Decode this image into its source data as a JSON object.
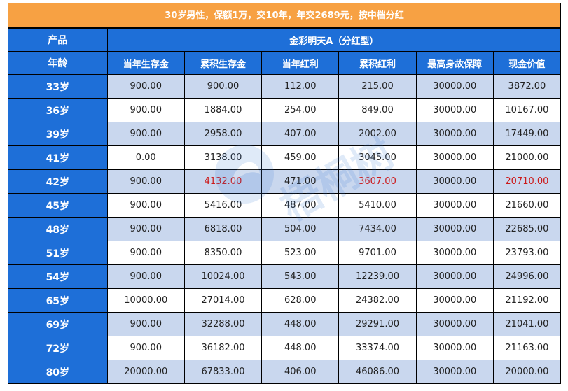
{
  "title": "30岁男性，保额1万，交10年，年交2689元，按中档分红",
  "header": {
    "product_label": "产品",
    "product_name": "金彩明天A（分红型）",
    "age_label": "年龄",
    "columns": [
      "当年生存金",
      "累积生存金",
      "当年红利",
      "累积红利",
      "最高身故保障",
      "现金价值"
    ]
  },
  "rows": [
    {
      "age": "33岁",
      "cells": [
        "900.00",
        "900.00",
        "112.00",
        "215.00",
        "30000.00",
        "3872.00"
      ]
    },
    {
      "age": "36岁",
      "cells": [
        "900.00",
        "1884.00",
        "254.00",
        "849.00",
        "30000.00",
        "10167.00"
      ]
    },
    {
      "age": "39岁",
      "cells": [
        "900.00",
        "2958.00",
        "407.00",
        "2002.00",
        "30000.00",
        "17449.00"
      ]
    },
    {
      "age": "41岁",
      "cells": [
        "0.00",
        "3138.00",
        "459.00",
        "3045.00",
        "30000.00",
        "21000.00"
      ]
    },
    {
      "age": "42岁",
      "cells": [
        "900.00",
        "4132.00",
        "471.00",
        "3607.00",
        "30000.00",
        "20710.00"
      ]
    },
    {
      "age": "45岁",
      "cells": [
        "900.00",
        "5416.00",
        "487.00",
        "5410.00",
        "30000.00",
        "21660.00"
      ]
    },
    {
      "age": "48岁",
      "cells": [
        "900.00",
        "6818.00",
        "504.00",
        "7434.00",
        "30000.00",
        "22685.00"
      ]
    },
    {
      "age": "51岁",
      "cells": [
        "900.00",
        "8350.00",
        "523.00",
        "9701.00",
        "30000.00",
        "23793.00"
      ]
    },
    {
      "age": "54岁",
      "cells": [
        "900.00",
        "10024.00",
        "543.00",
        "12239.00",
        "30000.00",
        "24996.00"
      ]
    },
    {
      "age": "65岁",
      "cells": [
        "10000.00",
        "27014.00",
        "628.00",
        "24382.00",
        "30000.00",
        "21192.00"
      ]
    },
    {
      "age": "69岁",
      "cells": [
        "900.00",
        "32288.00",
        "448.00",
        "29291.00",
        "30000.00",
        "21041.00"
      ]
    },
    {
      "age": "72岁",
      "cells": [
        "900.00",
        "36182.00",
        "448.00",
        "33374.00",
        "30000.00",
        "21163.00"
      ]
    },
    {
      "age": "80岁",
      "cells": [
        "20000.00",
        "67833.00",
        "406.00",
        "46086.00",
        "30000.00",
        "20000.00"
      ]
    }
  ],
  "watermark": {
    "text": "梧桐树",
    "icon": "logo-watermark-icon"
  },
  "colors": {
    "title_bg": "#f7a143",
    "header_bg": "#1e6fd8",
    "stripe_bg": "#c9d7ee",
    "highlight_text": "#cc1a1a"
  }
}
